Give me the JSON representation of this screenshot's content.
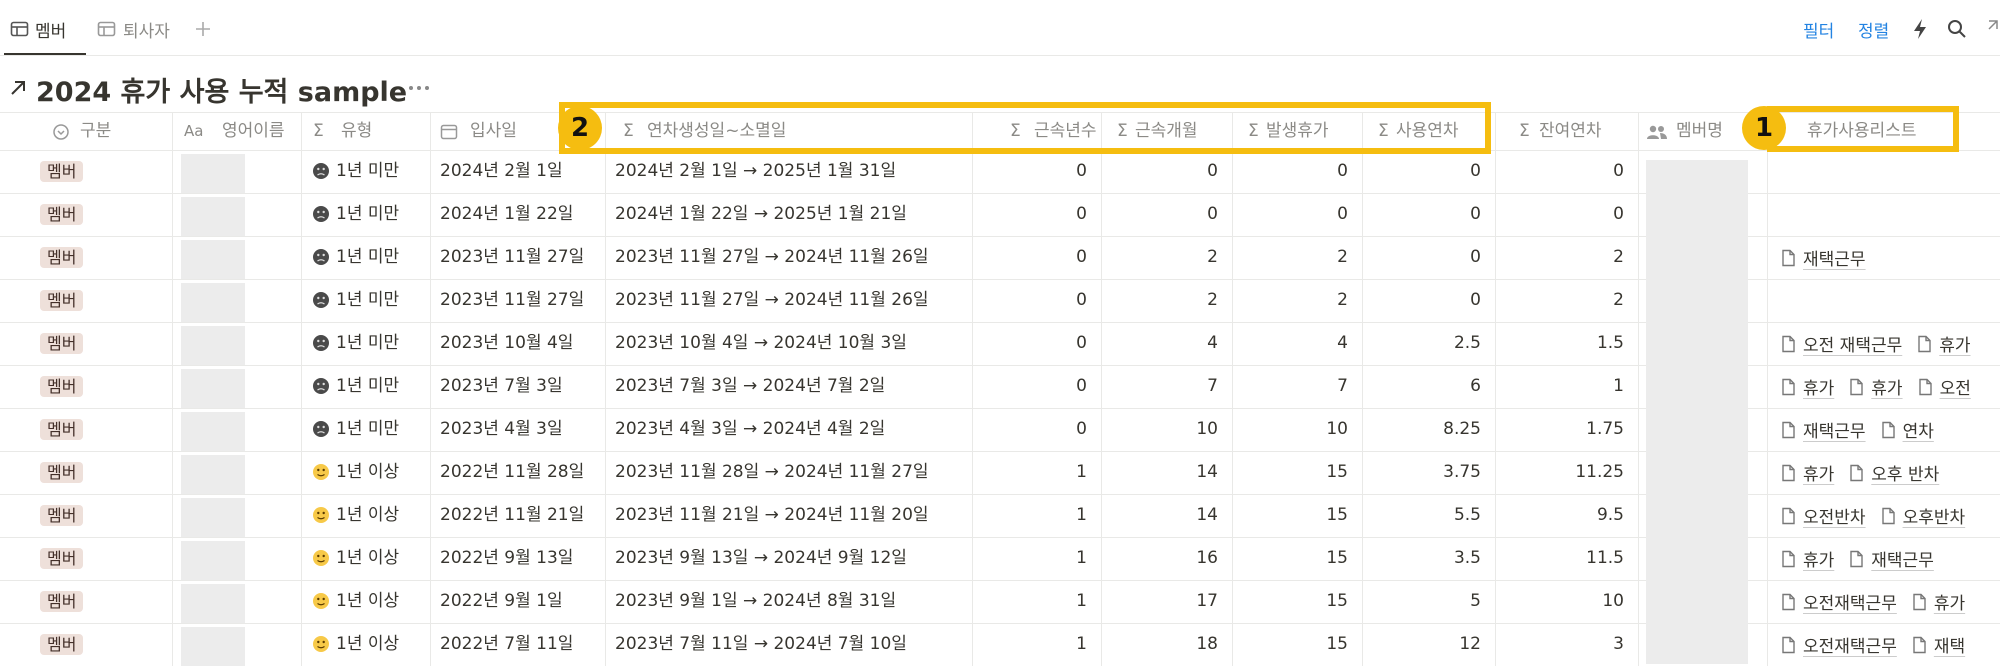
{
  "tabs": [
    "멤버",
    "퇴사자"
  ],
  "toolbar": [
    "필터",
    "정렬"
  ],
  "title": "2024 휴가 사용 누적 sample",
  "columns": [
    {
      "label": "구분"
    },
    {
      "icon": "Aa",
      "label": "영어이름"
    },
    {
      "icon": "Σ",
      "label": "유형"
    },
    {
      "label": "입사일"
    },
    {
      "icon": "Σ",
      "label": "연차생성일~소멸일"
    },
    {
      "icon": "Σ",
      "label": "근속년수"
    },
    {
      "icon": "Σ",
      "label": "근속개월"
    },
    {
      "icon": "Σ",
      "label": "발생휴가"
    },
    {
      "icon": "Σ",
      "label": "사용연차"
    },
    {
      "icon": "Σ",
      "label": "잔여연차"
    },
    {
      "label": "멤버명"
    },
    {
      "label": "휴가사용리스트"
    }
  ],
  "callouts": [
    "2",
    "1"
  ],
  "rows": [
    {
      "group": "멤버",
      "type": "1년 미만",
      "joined": "2024년 2월 1일",
      "period": "2024년 2월 1일 → 2025년 1월 31일",
      "years": 0,
      "months": 0,
      "granted": 0,
      "used": 0,
      "remaining": 0
    },
    {
      "group": "멤버",
      "type": "1년 미만",
      "joined": "2024년 1월 22일",
      "period": "2024년 1월 22일 → 2025년 1월 21일",
      "years": 0,
      "months": 0,
      "granted": 0,
      "used": 0,
      "remaining": 0
    },
    {
      "group": "멤버",
      "type": "1년 미만",
      "joined": "2023년 11월 27일",
      "period": "2023년 11월 27일 → 2024년 11월 26일",
      "years": 0,
      "months": 2,
      "granted": 2,
      "used": 0,
      "remaining": 2,
      "leave_list": [
        "재택근무"
      ]
    },
    {
      "group": "멤버",
      "type": "1년 미만",
      "joined": "2023년 11월 27일",
      "period": "2023년 11월 27일 → 2024년 11월 26일",
      "years": 0,
      "months": 2,
      "granted": 2,
      "used": 0,
      "remaining": 2
    },
    {
      "group": "멤버",
      "type": "1년 미만",
      "joined": "2023년 10월 4일",
      "period": "2023년 10월 4일 → 2024년 10월 3일",
      "years": 0,
      "months": 4,
      "granted": 4,
      "used": 2.5,
      "remaining": 1.5,
      "leave_list": [
        "오전 재택근무",
        "휴가"
      ]
    },
    {
      "group": "멤버",
      "type": "1년 미만",
      "joined": "2023년 7월 3일",
      "period": "2023년 7월 3일 → 2024년 7월 2일",
      "years": 0,
      "months": 7,
      "granted": 7,
      "used": 6,
      "remaining": 1,
      "leave_list": [
        "휴가",
        "휴가",
        "오전"
      ]
    },
    {
      "group": "멤버",
      "type": "1년 미만",
      "joined": "2023년 4월 3일",
      "period": "2023년 4월 3일 → 2024년 4월 2일",
      "years": 0,
      "months": 10,
      "granted": 10,
      "used": 8.25,
      "remaining": 1.75,
      "leave_list": [
        "재택근무",
        "연차"
      ]
    },
    {
      "group": "멤버",
      "type": "1년 이상",
      "joined": "2022년 11월 28일",
      "period": "2023년 11월 28일 → 2024년 11월 27일",
      "years": 1,
      "months": 14,
      "granted": 15,
      "used": 3.75,
      "remaining": 11.25,
      "leave_list": [
        "휴가",
        "오후 반차"
      ]
    },
    {
      "group": "멤버",
      "type": "1년 이상",
      "joined": "2022년 11월 21일",
      "period": "2023년 11월 21일 → 2024년 11월 20일",
      "years": 1,
      "months": 14,
      "granted": 15,
      "used": 5.5,
      "remaining": 9.5,
      "leave_list": [
        "오전반차",
        "오후반차"
      ]
    },
    {
      "group": "멤버",
      "type": "1년 이상",
      "joined": "2022년 9월 13일",
      "period": "2023년 9월 13일 → 2024년 9월 12일",
      "years": 1,
      "months": 16,
      "granted": 15,
      "used": 3.5,
      "remaining": 11.5,
      "leave_list": [
        "휴가",
        "재택근무"
      ]
    },
    {
      "group": "멤버",
      "type": "1년 이상",
      "joined": "2022년 9월 1일",
      "period": "2023년 9월 1일 → 2024년 8월 31일",
      "years": 1,
      "months": 17,
      "granted": 15,
      "used": 5,
      "remaining": 10,
      "leave_list": [
        "오전재택근무",
        "휴가"
      ]
    },
    {
      "group": "멤버",
      "type": "1년 이상",
      "joined": "2022년 7월 11일",
      "period": "2023년 7월 11일 → 2024년 7월 10일",
      "years": 1,
      "months": 18,
      "granted": 15,
      "used": 12,
      "remaining": 3,
      "leave_list": [
        "오전재택근무",
        "재택"
      ]
    }
  ]
}
